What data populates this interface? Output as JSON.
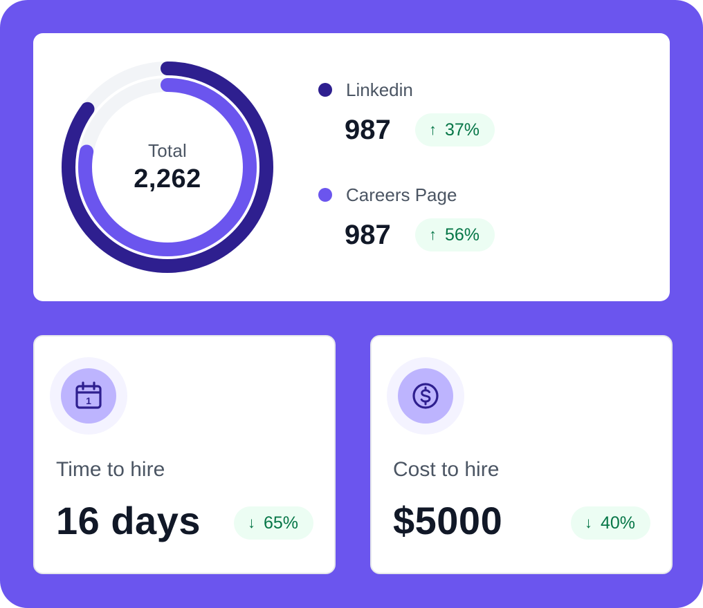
{
  "summary": {
    "total_label": "Total",
    "total_value": "2,262",
    "chart": {
      "type": "donut",
      "outer_ring": {
        "name": "Linkedin",
        "fraction": 0.85,
        "color": "#2e1f8f"
      },
      "inner_ring": {
        "name": "Careers Page",
        "fraction": 0.78,
        "color": "#6b55ee"
      },
      "track_color": "#f2f4f7"
    },
    "sources": [
      {
        "name": "Linkedin",
        "value": "987",
        "change": "37%",
        "direction": "up",
        "color": "#2e1f8f"
      },
      {
        "name": "Careers Page",
        "value": "987",
        "change": "56%",
        "direction": "up",
        "color": "#6b55ee"
      }
    ]
  },
  "metrics": {
    "time_to_hire": {
      "label": "Time to hire",
      "value": "16 days",
      "change": "65%",
      "direction": "down",
      "icon": "calendar-icon",
      "icon_day": "1"
    },
    "cost_to_hire": {
      "label": "Cost to hire",
      "value": "$5000",
      "change": "40%",
      "direction": "down",
      "icon": "dollar-circle-icon"
    }
  },
  "arrows": {
    "up": "↑",
    "down": "↓"
  },
  "colors": {
    "background": "#6b55ee",
    "badge_bg": "#ecfdf3",
    "badge_text": "#067647",
    "icon_color": "#2e1f8f"
  }
}
